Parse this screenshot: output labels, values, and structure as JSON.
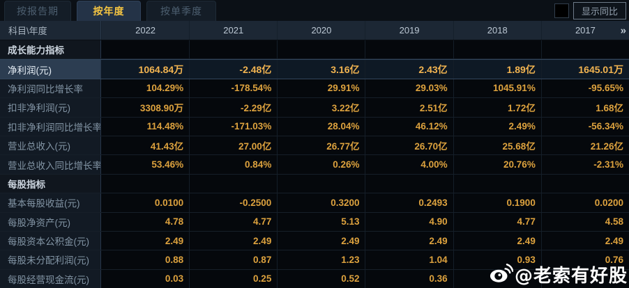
{
  "tabs": [
    {
      "label": "按报告期",
      "active": false
    },
    {
      "label": "按年度",
      "active": true
    },
    {
      "label": "按单季度",
      "active": false
    }
  ],
  "controls": {
    "show_yoy_label": "显示同比",
    "show_yoy_checked": false
  },
  "table": {
    "corner_label": "科目\\年度",
    "years": [
      "2022",
      "2021",
      "2020",
      "2019",
      "2018",
      "2017"
    ],
    "more_icon": "»",
    "rows": [
      {
        "type": "section",
        "label": "成长能力指标"
      },
      {
        "type": "data",
        "label": "净利润(元)",
        "highlight": true,
        "values": [
          "1064.84万",
          "-2.48亿",
          "3.16亿",
          "2.43亿",
          "1.89亿",
          "1645.01万"
        ]
      },
      {
        "type": "data",
        "label": "净利润同比增长率",
        "values": [
          "104.29%",
          "-178.54%",
          "29.91%",
          "29.03%",
          "1045.91%",
          "-95.65%"
        ]
      },
      {
        "type": "data",
        "label": "扣非净利润(元)",
        "values": [
          "3308.90万",
          "-2.29亿",
          "3.22亿",
          "2.51亿",
          "1.72亿",
          "1.68亿"
        ]
      },
      {
        "type": "data",
        "label": "扣非净利润同比增长率",
        "values": [
          "114.48%",
          "-171.03%",
          "28.04%",
          "46.12%",
          "2.49%",
          "-56.34%"
        ]
      },
      {
        "type": "data",
        "label": "营业总收入(元)",
        "values": [
          "41.43亿",
          "27.00亿",
          "26.77亿",
          "26.70亿",
          "25.68亿",
          "21.26亿"
        ]
      },
      {
        "type": "data",
        "label": "营业总收入同比增长率",
        "values": [
          "53.46%",
          "0.84%",
          "0.26%",
          "4.00%",
          "20.76%",
          "-2.31%"
        ]
      },
      {
        "type": "section",
        "label": "每股指标"
      },
      {
        "type": "data",
        "label": "基本每股收益(元)",
        "values": [
          "0.0100",
          "-0.2500",
          "0.3200",
          "0.2493",
          "0.1900",
          "0.0200"
        ]
      },
      {
        "type": "data",
        "label": "每股净资产(元)",
        "values": [
          "4.78",
          "4.77",
          "5.13",
          "4.90",
          "4.77",
          "4.58"
        ]
      },
      {
        "type": "data",
        "label": "每股资本公积金(元)",
        "values": [
          "2.49",
          "2.49",
          "2.49",
          "2.49",
          "2.49",
          "2.49"
        ]
      },
      {
        "type": "data",
        "label": "每股未分配利润(元)",
        "values": [
          "0.88",
          "0.87",
          "1.23",
          "1.04",
          "0.93",
          "0.76"
        ]
      },
      {
        "type": "data",
        "label": "每股经营现金流(元)",
        "values": [
          "0.03",
          "0.25",
          "0.52",
          "0.36",
          "",
          ""
        ]
      }
    ]
  },
  "watermark": {
    "text": "@老索有好股",
    "icon": "weibo-icon"
  },
  "colors": {
    "value_gold": "#dda23e",
    "highlight_value_gold": "#f2b451",
    "active_tab_text": "#f5c542",
    "highlight_row_bg": "#2c3d51",
    "header_bg": "#1c2734",
    "page_bg": "#070b10"
  }
}
